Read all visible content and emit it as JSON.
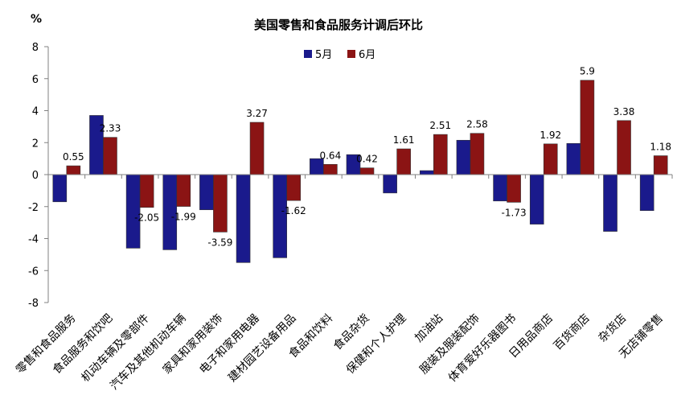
{
  "chart_data": {
    "type": "bar",
    "title": "美国零售和食品服务计调后环比",
    "ylabel": "%",
    "ylim": [
      -8,
      8
    ],
    "yticks": [
      -8,
      -6,
      -4,
      -2,
      0,
      2,
      4,
      6,
      8
    ],
    "grid": false,
    "legend": "top-center",
    "categories": [
      "零售和食品服务",
      "食品服务和饮吧",
      "机动车辆及零部件",
      "汽车及其他机动车辆",
      "家具和家用装饰",
      "电子和家用电器",
      "建材园艺设备用品",
      "食品和饮料",
      "食品杂货",
      "保健和个人护理",
      "加油站",
      "服装及服装配饰",
      "体育爱好乐器图书",
      "日用品商店",
      "百货商店",
      "杂货店",
      "无店铺零售"
    ],
    "series": [
      {
        "name": "5月",
        "color": "#1a1a8c",
        "values": [
          -1.7,
          3.7,
          -4.6,
          -4.7,
          -2.2,
          -5.5,
          -5.2,
          1.0,
          1.25,
          -1.15,
          0.25,
          2.15,
          -1.65,
          -3.1,
          1.95,
          -3.55,
          -2.25
        ]
      },
      {
        "name": "6月",
        "color": "#8b1414",
        "values": [
          0.55,
          2.33,
          -2.05,
          -1.99,
          -3.59,
          3.27,
          -1.62,
          0.64,
          0.42,
          1.61,
          2.51,
          2.58,
          -1.73,
          1.92,
          5.9,
          3.38,
          1.18
        ],
        "data_labels": [
          "0.55",
          "2.33",
          "-2.05",
          "-1.99",
          "-3.59",
          "3.27",
          "-1.62",
          "0.64",
          "0.42",
          "1.61",
          "2.51",
          "2.58",
          "-1.73",
          "1.92",
          "5.9",
          "3.38",
          "1.18"
        ]
      }
    ]
  }
}
